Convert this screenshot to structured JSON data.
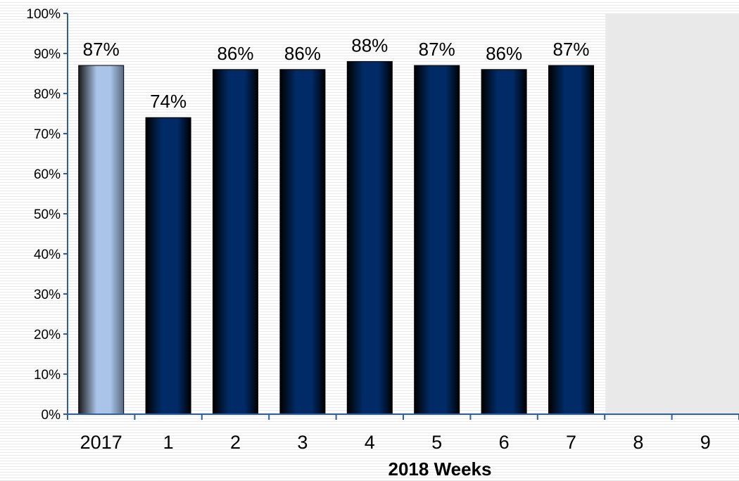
{
  "chart_data": {
    "type": "bar",
    "categories": [
      "2017",
      "1",
      "2",
      "3",
      "4",
      "5",
      "6",
      "7",
      "8",
      "9"
    ],
    "values": [
      87,
      74,
      86,
      86,
      88,
      87,
      86,
      87,
      null,
      null
    ],
    "data_labels": [
      "87%",
      "74%",
      "86%",
      "86%",
      "88%",
      "87%",
      "86%",
      "87%",
      "",
      ""
    ],
    "y_tick_labels": [
      "0%",
      "10%",
      "20%",
      "30%",
      "40%",
      "50%",
      "60%",
      "70%",
      "80%",
      "90%",
      "100%"
    ],
    "xlabel": "2018 Weeks",
    "ylabel": "",
    "ylim": [
      0,
      100
    ],
    "highlight_category": "2017",
    "shaded_categories": [
      "8",
      "9"
    ],
    "colors": {
      "primary_bar": "#002b66",
      "highlight_bar": "#a9c4e8",
      "axis": "#2f5f9e",
      "shaded_region": "#e9e9e9"
    },
    "grid": false,
    "legend": "none"
  }
}
